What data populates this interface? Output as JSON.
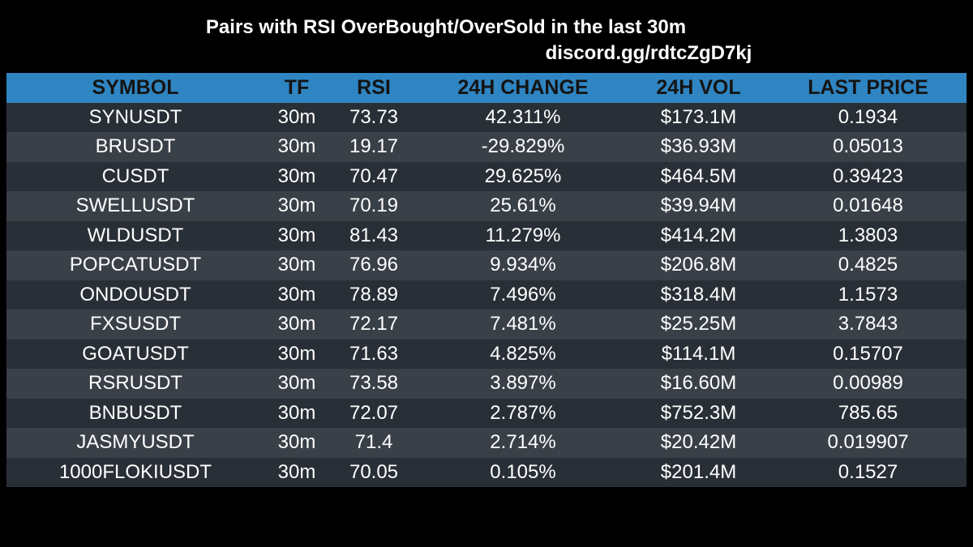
{
  "title": "Pairs with RSI OverBought/OverSold in the last 30m",
  "subtitle": "discord.gg/rdtcZgD7kj",
  "colors": {
    "background": "#000000",
    "header_bg": "#2f85c2",
    "row_dark": "#292f36",
    "row_light": "#3a4048"
  },
  "table": {
    "headers": {
      "symbol": "SYMBOL",
      "tf": "TF",
      "rsi": "RSI",
      "change": "24H CHANGE",
      "vol": "24H VOL",
      "price": "LAST PRICE"
    },
    "rows": [
      {
        "symbol": "SYNUSDT",
        "tf": "30m",
        "rsi": "73.73",
        "change": "42.311%",
        "vol": "$173.1M",
        "price": "0.1934"
      },
      {
        "symbol": "BRUSDT",
        "tf": "30m",
        "rsi": "19.17",
        "change": "-29.829%",
        "vol": "$36.93M",
        "price": "0.05013"
      },
      {
        "symbol": "CUSDT",
        "tf": "30m",
        "rsi": "70.47",
        "change": "29.625%",
        "vol": "$464.5M",
        "price": "0.39423"
      },
      {
        "symbol": "SWELLUSDT",
        "tf": "30m",
        "rsi": "70.19",
        "change": "25.61%",
        "vol": "$39.94M",
        "price": "0.01648"
      },
      {
        "symbol": "WLDUSDT",
        "tf": "30m",
        "rsi": "81.43",
        "change": "11.279%",
        "vol": "$414.2M",
        "price": "1.3803"
      },
      {
        "symbol": "POPCATUSDT",
        "tf": "30m",
        "rsi": "76.96",
        "change": "9.934%",
        "vol": "$206.8M",
        "price": "0.4825"
      },
      {
        "symbol": "ONDOUSDT",
        "tf": "30m",
        "rsi": "78.89",
        "change": "7.496%",
        "vol": "$318.4M",
        "price": "1.1573"
      },
      {
        "symbol": "FXSUSDT",
        "tf": "30m",
        "rsi": "72.17",
        "change": "7.481%",
        "vol": "$25.25M",
        "price": "3.7843"
      },
      {
        "symbol": "GOATUSDT",
        "tf": "30m",
        "rsi": "71.63",
        "change": "4.825%",
        "vol": "$114.1M",
        "price": "0.15707"
      },
      {
        "symbol": "RSRUSDT",
        "tf": "30m",
        "rsi": "73.58",
        "change": "3.897%",
        "vol": "$16.60M",
        "price": "0.00989"
      },
      {
        "symbol": "BNBUSDT",
        "tf": "30m",
        "rsi": "72.07",
        "change": "2.787%",
        "vol": "$752.3M",
        "price": "785.65"
      },
      {
        "symbol": "JASMYUSDT",
        "tf": "30m",
        "rsi": "71.4",
        "change": "2.714%",
        "vol": "$20.42M",
        "price": "0.019907"
      },
      {
        "symbol": "1000FLOKIUSDT",
        "tf": "30m",
        "rsi": "70.05",
        "change": "0.105%",
        "vol": "$201.4M",
        "price": "0.1527"
      }
    ]
  }
}
